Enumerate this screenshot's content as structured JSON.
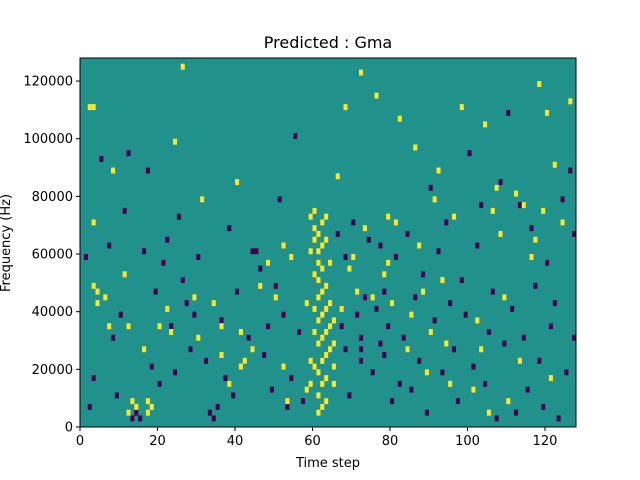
{
  "chart_data": {
    "type": "heatmap",
    "title": "Predicted : Gma",
    "xlabel": "Time step",
    "ylabel": "Frequency (Hz)",
    "xlim": [
      0,
      128
    ],
    "ylim": [
      0,
      128000
    ],
    "x_ticks": [
      0,
      20,
      40,
      60,
      80,
      100,
      120
    ],
    "y_ticks": [
      0,
      20000,
      40000,
      60000,
      80000,
      100000,
      120000
    ],
    "x_tick_labels": [
      "0",
      "20",
      "40",
      "60",
      "80",
      "100",
      "120"
    ],
    "y_tick_labels": [
      "0",
      "20000",
      "40000",
      "60000",
      "80000",
      "100000",
      "120000"
    ],
    "grid": false,
    "colors": {
      "background": "#21918c",
      "high": "#fde725",
      "low": "#440154"
    },
    "value_levels": {
      "background": 0,
      "high": 1,
      "low": -1
    },
    "cells_high": [
      [
        2,
        110000
      ],
      [
        3,
        110000
      ],
      [
        3,
        70000
      ],
      [
        3,
        48000
      ],
      [
        4,
        46000
      ],
      [
        4,
        42000
      ],
      [
        6,
        44000
      ],
      [
        7,
        34000
      ],
      [
        8,
        88000
      ],
      [
        11,
        52000
      ],
      [
        12,
        34000
      ],
      [
        12,
        4000
      ],
      [
        13,
        8000
      ],
      [
        14,
        6000
      ],
      [
        16,
        26000
      ],
      [
        17,
        4000
      ],
      [
        17,
        8000
      ],
      [
        18,
        6000
      ],
      [
        20,
        34000
      ],
      [
        22,
        40000
      ],
      [
        23,
        32000
      ],
      [
        24,
        98000
      ],
      [
        26,
        124000
      ],
      [
        29,
        44000
      ],
      [
        30,
        30000
      ],
      [
        31,
        78000
      ],
      [
        34,
        42000
      ],
      [
        36,
        24000
      ],
      [
        36,
        34000
      ],
      [
        38,
        14000
      ],
      [
        40,
        84000
      ],
      [
        41,
        20000
      ],
      [
        41,
        32000
      ],
      [
        42,
        22000
      ],
      [
        44,
        26000
      ],
      [
        46,
        48000
      ],
      [
        48,
        56000
      ],
      [
        50,
        44000
      ],
      [
        52,
        62000
      ],
      [
        52,
        20000
      ],
      [
        53,
        8000
      ],
      [
        54,
        58000
      ],
      [
        58,
        42000
      ],
      [
        58,
        12000
      ],
      [
        59,
        22000
      ],
      [
        59,
        72000
      ],
      [
        59,
        60000
      ],
      [
        59,
        14000
      ],
      [
        60,
        74000
      ],
      [
        60,
        68000
      ],
      [
        60,
        64000
      ],
      [
        60,
        52000
      ],
      [
        60,
        40000
      ],
      [
        60,
        32000
      ],
      [
        60,
        20000
      ],
      [
        61,
        66000
      ],
      [
        61,
        60000
      ],
      [
        61,
        56000
      ],
      [
        61,
        50000
      ],
      [
        61,
        44000
      ],
      [
        61,
        36000
      ],
      [
        61,
        28000
      ],
      [
        61,
        18000
      ],
      [
        61,
        10000
      ],
      [
        61,
        4000
      ],
      [
        62,
        70000
      ],
      [
        62,
        62000
      ],
      [
        62,
        54000
      ],
      [
        62,
        46000
      ],
      [
        62,
        38000
      ],
      [
        62,
        30000
      ],
      [
        62,
        22000
      ],
      [
        62,
        14000
      ],
      [
        62,
        6000
      ],
      [
        63,
        72000
      ],
      [
        63,
        64000
      ],
      [
        63,
        48000
      ],
      [
        63,
        40000
      ],
      [
        63,
        32000
      ],
      [
        63,
        24000
      ],
      [
        63,
        16000
      ],
      [
        63,
        8000
      ],
      [
        64,
        56000
      ],
      [
        64,
        42000
      ],
      [
        64,
        34000
      ],
      [
        64,
        26000
      ],
      [
        65,
        36000
      ],
      [
        65,
        28000
      ],
      [
        65,
        20000
      ],
      [
        65,
        14000
      ],
      [
        66,
        86000
      ],
      [
        67,
        40000
      ],
      [
        68,
        110000
      ],
      [
        69,
        54000
      ],
      [
        70,
        58000
      ],
      [
        71,
        46000
      ],
      [
        72,
        122000
      ],
      [
        73,
        68000
      ],
      [
        75,
        44000
      ],
      [
        76,
        114000
      ],
      [
        78,
        52000
      ],
      [
        79,
        72000
      ],
      [
        79,
        56000
      ],
      [
        80,
        42000
      ],
      [
        81,
        70000
      ],
      [
        82,
        106000
      ],
      [
        84,
        26000
      ],
      [
        85,
        38000
      ],
      [
        86,
        96000
      ],
      [
        87,
        62000
      ],
      [
        88,
        46000
      ],
      [
        89,
        18000
      ],
      [
        90,
        32000
      ],
      [
        91,
        78000
      ],
      [
        92,
        88000
      ],
      [
        93,
        50000
      ],
      [
        94,
        28000
      ],
      [
        95,
        14000
      ],
      [
        96,
        72000
      ],
      [
        98,
        110000
      ],
      [
        101,
        12000
      ],
      [
        102,
        36000
      ],
      [
        103,
        26000
      ],
      [
        104,
        104000
      ],
      [
        105,
        4000
      ],
      [
        106,
        74000
      ],
      [
        107,
        82000
      ],
      [
        108,
        66000
      ],
      [
        109,
        44000
      ],
      [
        110,
        8000
      ],
      [
        112,
        80000
      ],
      [
        113,
        22000
      ],
      [
        114,
        76000
      ],
      [
        116,
        58000
      ],
      [
        117,
        64000
      ],
      [
        118,
        118000
      ],
      [
        119,
        74000
      ],
      [
        120,
        108000
      ],
      [
        121,
        16000
      ],
      [
        122,
        90000
      ],
      [
        124,
        70000
      ],
      [
        126,
        112000
      ]
    ],
    "cells_low": [
      [
        1,
        58000
      ],
      [
        2,
        6000
      ],
      [
        3,
        16000
      ],
      [
        5,
        92000
      ],
      [
        7,
        62000
      ],
      [
        8,
        30000
      ],
      [
        9,
        10000
      ],
      [
        10,
        38000
      ],
      [
        11,
        74000
      ],
      [
        12,
        94000
      ],
      [
        13,
        2000
      ],
      [
        14,
        4000
      ],
      [
        15,
        2000
      ],
      [
        16,
        60000
      ],
      [
        17,
        88000
      ],
      [
        18,
        20000
      ],
      [
        19,
        46000
      ],
      [
        20,
        14000
      ],
      [
        21,
        56000
      ],
      [
        22,
        64000
      ],
      [
        23,
        34000
      ],
      [
        24,
        18000
      ],
      [
        25,
        72000
      ],
      [
        26,
        50000
      ],
      [
        27,
        42000
      ],
      [
        28,
        26000
      ],
      [
        29,
        38000
      ],
      [
        30,
        58000
      ],
      [
        32,
        22000
      ],
      [
        33,
        4000
      ],
      [
        34,
        2000
      ],
      [
        35,
        6000
      ],
      [
        36,
        36000
      ],
      [
        37,
        16000
      ],
      [
        38,
        68000
      ],
      [
        39,
        10000
      ],
      [
        40,
        46000
      ],
      [
        43,
        30000
      ],
      [
        44,
        60000
      ],
      [
        45,
        60000
      ],
      [
        46,
        54000
      ],
      [
        47,
        24000
      ],
      [
        48,
        34000
      ],
      [
        49,
        12000
      ],
      [
        50,
        48000
      ],
      [
        51,
        78000
      ],
      [
        52,
        38000
      ],
      [
        53,
        6000
      ],
      [
        54,
        16000
      ],
      [
        55,
        100000
      ],
      [
        56,
        32000
      ],
      [
        57,
        8000
      ],
      [
        66,
        66000
      ],
      [
        67,
        34000
      ],
      [
        68,
        26000
      ],
      [
        68,
        58000
      ],
      [
        69,
        10000
      ],
      [
        70,
        70000
      ],
      [
        71,
        38000
      ],
      [
        72,
        30000
      ],
      [
        72,
        26000
      ],
      [
        72,
        22000
      ],
      [
        73,
        44000
      ],
      [
        74,
        64000
      ],
      [
        75,
        18000
      ],
      [
        76,
        40000
      ],
      [
        77,
        62000
      ],
      [
        77,
        28000
      ],
      [
        78,
        46000
      ],
      [
        78,
        24000
      ],
      [
        79,
        34000
      ],
      [
        80,
        8000
      ],
      [
        81,
        58000
      ],
      [
        82,
        14000
      ],
      [
        83,
        30000
      ],
      [
        84,
        66000
      ],
      [
        85,
        12000
      ],
      [
        86,
        44000
      ],
      [
        87,
        22000
      ],
      [
        88,
        52000
      ],
      [
        89,
        4000
      ],
      [
        90,
        82000
      ],
      [
        91,
        36000
      ],
      [
        92,
        60000
      ],
      [
        93,
        18000
      ],
      [
        94,
        70000
      ],
      [
        95,
        42000
      ],
      [
        96,
        26000
      ],
      [
        97,
        8000
      ],
      [
        98,
        50000
      ],
      [
        99,
        38000
      ],
      [
        100,
        94000
      ],
      [
        101,
        20000
      ],
      [
        102,
        62000
      ],
      [
        103,
        76000
      ],
      [
        104,
        14000
      ],
      [
        105,
        32000
      ],
      [
        106,
        46000
      ],
      [
        107,
        2000
      ],
      [
        108,
        84000
      ],
      [
        109,
        28000
      ],
      [
        110,
        108000
      ],
      [
        111,
        40000
      ],
      [
        112,
        4000
      ],
      [
        113,
        76000
      ],
      [
        114,
        30000
      ],
      [
        115,
        12000
      ],
      [
        116,
        68000
      ],
      [
        117,
        48000
      ],
      [
        118,
        22000
      ],
      [
        119,
        6000
      ],
      [
        120,
        56000
      ],
      [
        121,
        34000
      ],
      [
        122,
        42000
      ],
      [
        123,
        2000
      ],
      [
        124,
        78000
      ],
      [
        125,
        18000
      ],
      [
        126,
        88000
      ],
      [
        127,
        30000
      ],
      [
        127,
        66000
      ]
    ]
  }
}
